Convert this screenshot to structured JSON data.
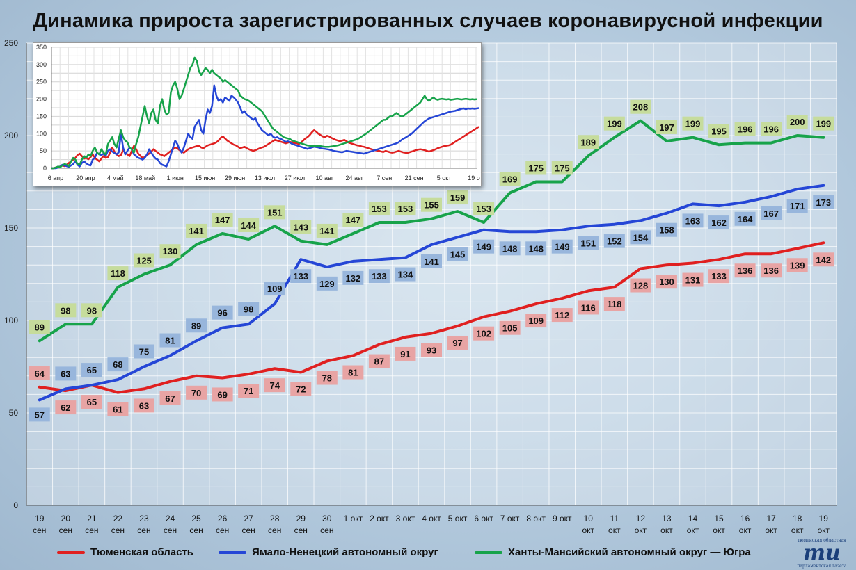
{
  "title": "Динамика прироста зарегистрированных случаев коронавирусной инфекции",
  "colors": {
    "tyumen": "#e02020",
    "yamal": "#2546d6",
    "hmao": "#17a34a",
    "tyumen_label_bg": "#e8a4a4",
    "yamal_label_bg": "#98b6dc",
    "hmao_label_bg": "#c6dc9c"
  },
  "chart_data": [
    {
      "type": "line",
      "ylim": [
        0,
        250
      ],
      "yticks": [
        0,
        50,
        100,
        150,
        200,
        250
      ],
      "grid": true,
      "legend_position": "bottom",
      "categories": [
        [
          "19",
          "сен"
        ],
        [
          "20",
          "сен"
        ],
        [
          "21",
          "сен"
        ],
        [
          "22",
          "сен"
        ],
        [
          "23",
          "сен"
        ],
        [
          "24",
          "сен"
        ],
        [
          "25",
          "сен"
        ],
        [
          "26",
          "сен"
        ],
        [
          "27",
          "сен"
        ],
        [
          "28",
          "сен"
        ],
        [
          "29",
          "сен"
        ],
        [
          "30",
          "сен"
        ],
        [
          "1 окт",
          ""
        ],
        [
          "2 окт",
          ""
        ],
        [
          "3 окт",
          ""
        ],
        [
          "4 окт",
          ""
        ],
        [
          "5 окт",
          ""
        ],
        [
          "6 окт",
          ""
        ],
        [
          "7 окт",
          ""
        ],
        [
          "8 окт",
          ""
        ],
        [
          "9 окт",
          ""
        ],
        [
          "10",
          "окт"
        ],
        [
          "11",
          "окт"
        ],
        [
          "12",
          "окт"
        ],
        [
          "13",
          "окт"
        ],
        [
          "14",
          "окт"
        ],
        [
          "15",
          "окт"
        ],
        [
          "16",
          "окт"
        ],
        [
          "17",
          "окт"
        ],
        [
          "18",
          "окт"
        ],
        [
          "19",
          "окт"
        ]
      ],
      "series": [
        {
          "name": "Тюменская область",
          "key": "tyumen",
          "label_pos": "above_first",
          "values": [
            64,
            62,
            65,
            61,
            63,
            67,
            70,
            69,
            71,
            74,
            72,
            78,
            81,
            87,
            91,
            93,
            97,
            102,
            105,
            109,
            112,
            116,
            118,
            128,
            130,
            131,
            133,
            136,
            136,
            139,
            142
          ]
        },
        {
          "name": "Ямало-Ненецкий автономный округ",
          "key": "yamal",
          "values": [
            57,
            63,
            65,
            68,
            75,
            81,
            89,
            96,
            98,
            109,
            133,
            129,
            132,
            133,
            134,
            141,
            145,
            149,
            148,
            148,
            149,
            151,
            152,
            154,
            158,
            163,
            162,
            164,
            167,
            171,
            173
          ]
        },
        {
          "name": "Ханты-Мансийский автономный округ — Югра",
          "key": "hmao",
          "values": [
            89,
            98,
            98,
            118,
            125,
            130,
            141,
            147,
            144,
            151,
            143,
            141,
            147,
            153,
            153,
            155,
            159,
            153,
            169,
            175,
            175,
            189,
            199,
            208,
            197,
            199,
            195,
            196,
            196,
            200,
            199
          ]
        }
      ]
    },
    {
      "type": "line",
      "ylim": [
        0,
        350
      ],
      "yticks": [
        0,
        50,
        100,
        150,
        200,
        250,
        300,
        350
      ],
      "grid": true,
      "xtick_labels": [
        "6 апр",
        "20 апр",
        "4 май",
        "18 май",
        "1 июн",
        "15 июн",
        "29 июн",
        "13 июл",
        "27 июл",
        "10 авг",
        "24 авг",
        "7 сен",
        "21 сен",
        "5 окт",
        "19 о"
      ],
      "n_points": 197,
      "series": [
        {
          "key": "tyumen",
          "values": [
            0,
            0,
            2,
            4,
            5,
            8,
            6,
            10,
            15,
            20,
            25,
            30,
            38,
            42,
            35,
            28,
            30,
            26,
            32,
            40,
            30,
            25,
            20,
            28,
            35,
            30,
            32,
            45,
            60,
            48,
            40,
            35,
            38,
            52,
            45,
            40,
            35,
            50,
            65,
            55,
            42,
            36,
            30,
            32,
            38,
            42,
            48,
            55,
            50,
            45,
            40,
            38,
            35,
            40,
            45,
            50,
            55,
            60,
            58,
            52,
            48,
            45,
            50,
            55,
            58,
            60,
            62,
            64,
            65,
            60,
            58,
            62,
            66,
            68,
            70,
            72,
            75,
            80,
            88,
            92,
            86,
            80,
            76,
            72,
            68,
            66,
            62,
            58,
            60,
            62,
            58,
            55,
            52,
            50,
            52,
            55,
            58,
            60,
            62,
            66,
            70,
            74,
            78,
            82,
            80,
            78,
            76,
            74,
            72,
            74,
            76,
            75,
            73,
            72,
            70,
            74,
            80,
            86,
            90,
            96,
            104,
            110,
            106,
            100,
            96,
            92,
            90,
            94,
            92,
            88,
            85,
            82,
            80,
            78,
            80,
            82,
            78,
            74,
            72,
            70,
            68,
            66,
            65,
            63,
            62,
            60,
            58,
            56,
            54,
            52,
            51,
            50,
            48,
            47,
            50,
            48,
            46,
            45,
            46,
            48,
            50,
            48,
            46,
            45,
            44,
            46,
            48,
            50,
            52,
            54,
            55,
            54,
            52,
            50,
            48,
            50,
            52,
            55,
            58,
            60,
            62,
            64,
            65,
            66,
            68,
            72,
            76,
            80,
            84,
            88,
            92,
            96,
            100,
            104,
            108,
            112,
            116,
            120
          ]
        },
        {
          "key": "yamal",
          "values": [
            0,
            0,
            0,
            2,
            5,
            10,
            8,
            6,
            4,
            8,
            12,
            20,
            10,
            5,
            15,
            20,
            14,
            10,
            8,
            25,
            30,
            45,
            40,
            38,
            42,
            36,
            50,
            55,
            48,
            44,
            40,
            46,
            100,
            60,
            40,
            50,
            60,
            55,
            40,
            35,
            30,
            28,
            25,
            30,
            40,
            55,
            45,
            35,
            28,
            25,
            15,
            10,
            8,
            5,
            20,
            40,
            60,
            80,
            70,
            55,
            45,
            60,
            80,
            100,
            90,
            85,
            120,
            130,
            140,
            110,
            100,
            140,
            170,
            160,
            180,
            240,
            210,
            195,
            200,
            190,
            205,
            200,
            195,
            210,
            205,
            198,
            190,
            175,
            160,
            165,
            155,
            150,
            145,
            140,
            145,
            130,
            120,
            110,
            105,
            100,
            95,
            100,
            92,
            88,
            90,
            86,
            84,
            80,
            76,
            78,
            74,
            70,
            68,
            66,
            64,
            62,
            60,
            58,
            56,
            58,
            60,
            62,
            61,
            60,
            58,
            57,
            56,
            55,
            54,
            52,
            50,
            49,
            48,
            47,
            46,
            48,
            50,
            49,
            48,
            47,
            46,
            45,
            44,
            43,
            42,
            44,
            46,
            48,
            50,
            52,
            54,
            56,
            58,
            60,
            62,
            64,
            66,
            68,
            70,
            72,
            75,
            80,
            85,
            88,
            92,
            96,
            100,
            106,
            112,
            118,
            124,
            130,
            136,
            140,
            144,
            146,
            148,
            150,
            152,
            154,
            156,
            158,
            160,
            162,
            164,
            165,
            166,
            168,
            170,
            172,
            173,
            171,
            173,
            172,
            173,
            172,
            173,
            174
          ]
        },
        {
          "key": "hmao",
          "values": [
            0,
            0,
            2,
            5,
            3,
            8,
            12,
            10,
            6,
            20,
            30,
            25,
            12,
            10,
            25,
            35,
            30,
            40,
            35,
            50,
            60,
            45,
            40,
            55,
            45,
            40,
            70,
            80,
            90,
            70,
            60,
            85,
            110,
            90,
            80,
            75,
            60,
            55,
            45,
            70,
            90,
            120,
            150,
            180,
            150,
            130,
            160,
            170,
            140,
            130,
            180,
            200,
            170,
            155,
            160,
            220,
            240,
            250,
            230,
            200,
            210,
            230,
            250,
            270,
            290,
            300,
            320,
            310,
            280,
            270,
            280,
            290,
            285,
            275,
            285,
            275,
            270,
            265,
            260,
            250,
            255,
            250,
            245,
            240,
            235,
            230,
            225,
            210,
            205,
            200,
            198,
            195,
            190,
            185,
            180,
            175,
            170,
            165,
            155,
            145,
            135,
            125,
            115,
            110,
            105,
            100,
            95,
            90,
            88,
            86,
            84,
            80,
            78,
            76,
            74,
            72,
            70,
            68,
            66,
            65,
            64,
            64,
            64,
            64,
            64,
            63,
            62,
            62,
            62,
            63,
            64,
            65,
            66,
            68,
            70,
            72,
            74,
            76,
            78,
            80,
            82,
            84,
            88,
            92,
            96,
            100,
            105,
            110,
            115,
            120,
            125,
            130,
            135,
            140,
            140,
            145,
            150,
            150,
            155,
            160,
            155,
            150,
            150,
            155,
            160,
            165,
            170,
            175,
            180,
            185,
            190,
            200,
            210,
            200,
            195,
            200,
            205,
            200,
            198,
            200,
            201,
            200,
            199,
            200,
            198,
            199,
            200,
            201,
            200,
            199,
            200,
            201,
            200,
            199,
            200,
            199,
            200
          ]
        }
      ]
    }
  ],
  "legend": [
    {
      "label": "Тюменская область",
      "key": "tyumen"
    },
    {
      "label": "Ямало-Ненецкий автономный округ",
      "key": "yamal"
    },
    {
      "label": "Ханты-Мансийский автономный округ — Югра",
      "key": "hmao"
    }
  ],
  "logo": {
    "top": "тюменская областная",
    "mark": "ти",
    "bottom": "парламентская газета"
  }
}
